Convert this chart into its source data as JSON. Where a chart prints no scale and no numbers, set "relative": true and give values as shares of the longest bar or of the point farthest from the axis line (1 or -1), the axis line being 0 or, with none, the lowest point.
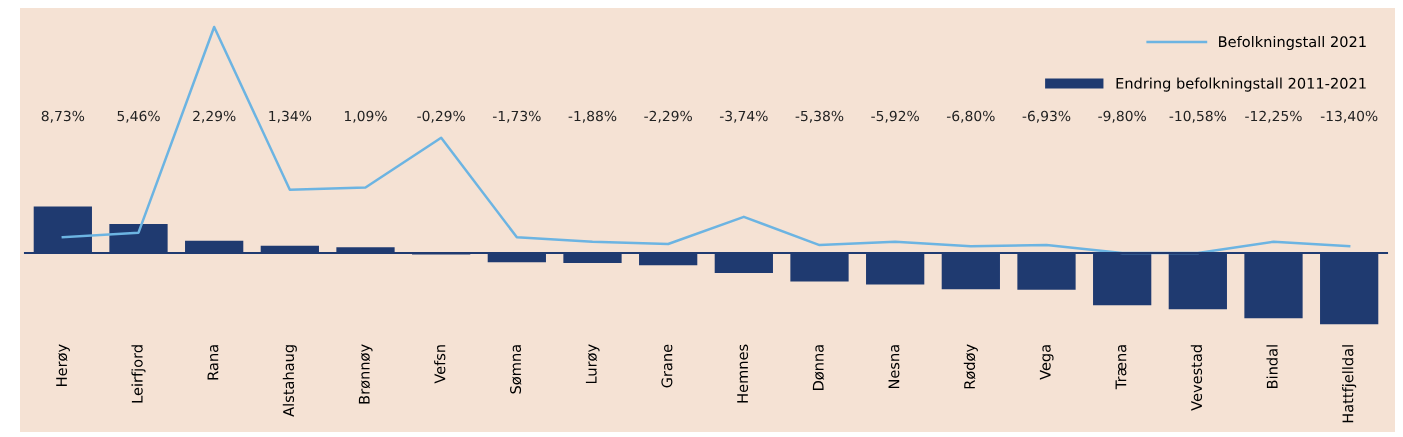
{
  "chart_data": [
    {
      "type": "bar",
      "tick_labels": "x",
      "legend": "top right",
      "categories": [
        "Herøy",
        "Leirfjord",
        "Rana",
        "Alstahaug",
        "Brønnøy",
        "Vefsn",
        "Sømna",
        "Lurøy",
        "Grane",
        "Hemnes",
        "Dønna",
        "Nesna",
        "Rødøy",
        "Vega",
        "Træna",
        "Vevestad",
        "Bindal",
        "Hattfjelldal"
      ],
      "series": [
        {
          "name": "Endring befolkningstall 2011-2021",
          "color": "#1f3a70",
          "values": [
            8.73,
            5.46,
            2.29,
            1.34,
            1.09,
            -0.29,
            -1.73,
            -1.88,
            -2.29,
            -3.74,
            -5.38,
            -5.92,
            -6.8,
            -6.93,
            -9.8,
            -10.58,
            -12.25,
            -13.4
          ],
          "value_labels": [
            "8,73%",
            "5,46%",
            "2,29%",
            "1,34%",
            "1,09%",
            "-0,29%",
            "-1,73%",
            "-1,88%",
            "-2,29%",
            "-3,74%",
            "-5,38%",
            "-5,92%",
            "-6,80%",
            "-6,93%",
            "-9,80%",
            "-10,58%",
            "-12,25%",
            "-13,40%"
          ]
        }
      ]
    },
    {
      "type": "line",
      "relative": true,
      "tick_labels": false,
      "legend": "top right",
      "categories": [
        null,
        null,
        null,
        null,
        null,
        null,
        null,
        null,
        null,
        null,
        null,
        null,
        null,
        null,
        null,
        null,
        null,
        null
      ],
      "series": [
        {
          "name": "Befolkningstall 2021",
          "color": "#6cb4e2",
          "values": [
            0.07,
            0.09,
            1,
            0.28,
            0.29,
            0.51,
            0.07,
            0.05,
            0.04,
            0.16,
            0.035,
            0.05,
            0.03,
            0.035,
            0,
            0,
            0.05,
            0.03
          ]
        }
      ]
    }
  ]
}
